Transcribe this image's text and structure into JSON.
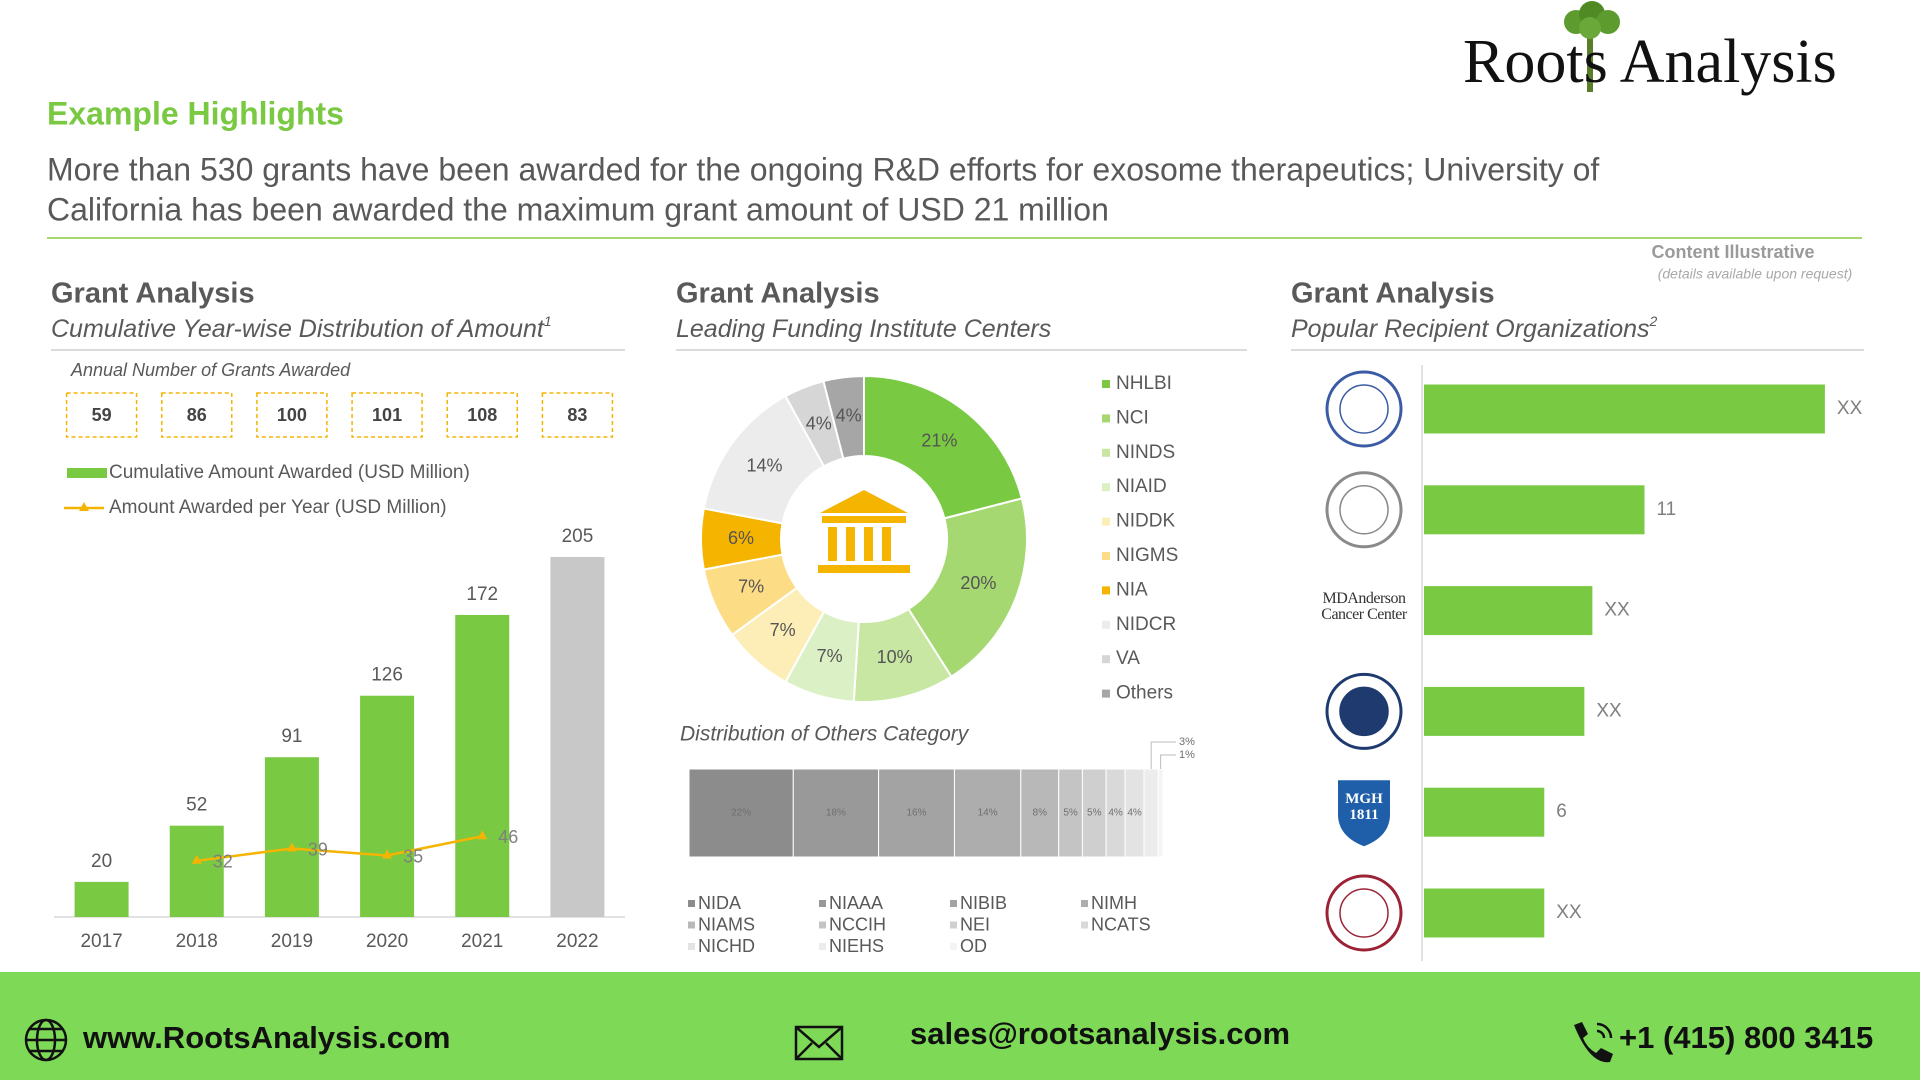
{
  "header": {
    "title": "Example Highlights",
    "headline": [
      "More than 530 grants have been awarded for the ongoing R&D efforts for exosome therapeutics; University of",
      "California has been awarded the maximum grant amount of USD 21 million"
    ],
    "logo": "Roots Analysis",
    "note": "Content Illustrative",
    "note_detail": "(details available upon request)"
  },
  "chart_data": [
    {
      "type": "bar",
      "title": "Grant Analysis",
      "subtitle": "Cumulative Year-wise Distribution of Amount",
      "footnote": "1",
      "annotation": "Annual Number of Grants Awarded",
      "annual_grants": [
        59,
        86,
        100,
        101,
        108,
        83
      ],
      "categories": [
        "2017",
        "2018",
        "2019",
        "2020",
        "2021",
        "2022"
      ],
      "series": [
        {
          "name": "Cumulative Amount Awarded (USD Million)",
          "type": "bar",
          "color": "#7ac943",
          "colors": [
            "#7ac943",
            "#7ac943",
            "#7ac943",
            "#7ac943",
            "#7ac943",
            "#c8c8c8"
          ],
          "values": [
            20,
            52,
            91,
            126,
            172,
            205
          ]
        },
        {
          "name": "Amount Awarded per Year (USD Million)",
          "type": "line",
          "color": "#f5b400",
          "values": [
            null,
            32,
            39,
            35,
            46,
            null
          ]
        }
      ],
      "ylim": [
        0,
        205
      ]
    },
    {
      "type": "donut",
      "title": "Grant Analysis",
      "subtitle": "Leading Funding Institute Centers",
      "categories": [
        "NHLBI",
        "NCI",
        "NINDS",
        "NIAID",
        "NIDDK",
        "NIGMS",
        "NIA",
        "NIDCR",
        "VA",
        "Others"
      ],
      "values": [
        21,
        20,
        10,
        7,
        7,
        7,
        6,
        14,
        4,
        4
      ],
      "value_labels": [
        "21%",
        "20%",
        "10%",
        "7%",
        "7%",
        "7%",
        "6%",
        "14%",
        "4%",
        "4%"
      ],
      "colors": [
        "#7ac943",
        "#a6d872",
        "#c7e7a3",
        "#dcf0c6",
        "#fdeeb8",
        "#fcdc85",
        "#f5b400",
        "#ececec",
        "#d6d6d6",
        "#a6a6a6"
      ]
    },
    {
      "type": "stacked",
      "title": "Distribution of Others Category",
      "categories": [
        "NIDA",
        "NIAAA",
        "NIBIB",
        "NIMH",
        "NIAMS",
        "NCCIH",
        "NEI",
        "NCATS",
        "NICHD",
        "NIEHS",
        "OD"
      ],
      "values": [
        22,
        18,
        16,
        14,
        8,
        5,
        5,
        4,
        4,
        3,
        1
      ],
      "value_labels": [
        "22%",
        "18%",
        "16%",
        "14%",
        "8%",
        "5%",
        "5%",
        "4%",
        "4%",
        "3%",
        "1%"
      ],
      "colors": [
        "#8c8c8c",
        "#999999",
        "#a3a3a3",
        "#adadad",
        "#b8b8b8",
        "#c4c4c4",
        "#cfcfcf",
        "#d9d9d9",
        "#e3e3e3",
        "#ececec",
        "#f4f4f4"
      ]
    },
    {
      "type": "hbar",
      "title": "Grant Analysis",
      "subtitle": "Popular Recipient Organizations",
      "footnote": "2",
      "categories": [
        null,
        null,
        "MDAnderson Cancer Center",
        null,
        "MGH 1811",
        null
      ],
      "values": [
        20,
        11,
        8.4,
        8,
        6,
        6
      ],
      "value_labels": [
        "XX",
        "11",
        "XX",
        "XX",
        "6",
        "XX"
      ],
      "color": "#7ac943",
      "xlim": [
        0,
        22
      ]
    }
  ],
  "footer": {
    "website": "www.RootsAnalysis.com",
    "email": "sales@rootsanalysis.com",
    "phone": "+1 (415) 800 3415"
  }
}
